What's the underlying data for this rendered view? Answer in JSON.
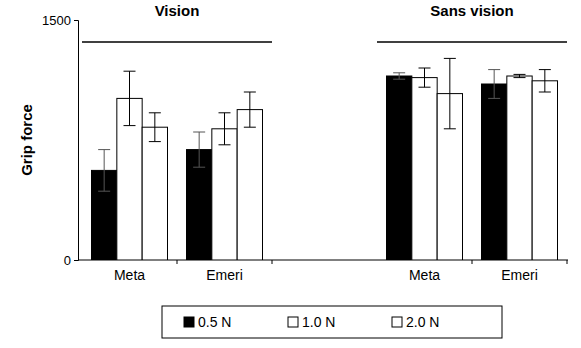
{
  "chart_data": {
    "type": "bar",
    "y_label": "Grip force",
    "categories": [
      "Meta",
      "Emeri",
      "Meta",
      "Emeri"
    ],
    "groups": [
      "Vision",
      "Vision",
      "Sans vision",
      "Sans vision"
    ],
    "series": [
      {
        "name": "0.5 N",
        "color": "#000000",
        "values": [
          560,
          690,
          1150,
          1100
        ],
        "errors": [
          130,
          110,
          20,
          90
        ]
      },
      {
        "name": "1.0 N",
        "color": "#ffffff",
        "values": [
          1010,
          820,
          1140,
          1150
        ],
        "errors": [
          170,
          100,
          60,
          10
        ]
      },
      {
        "name": "2.0 N",
        "color": "#ffffff",
        "values": [
          830,
          940,
          1040,
          1120
        ],
        "errors": [
          90,
          110,
          220,
          70
        ]
      }
    ],
    "ylim": [
      0,
      1500
    ],
    "yticks": [
      0,
      1500
    ],
    "grid": false,
    "legend": "bottom"
  }
}
